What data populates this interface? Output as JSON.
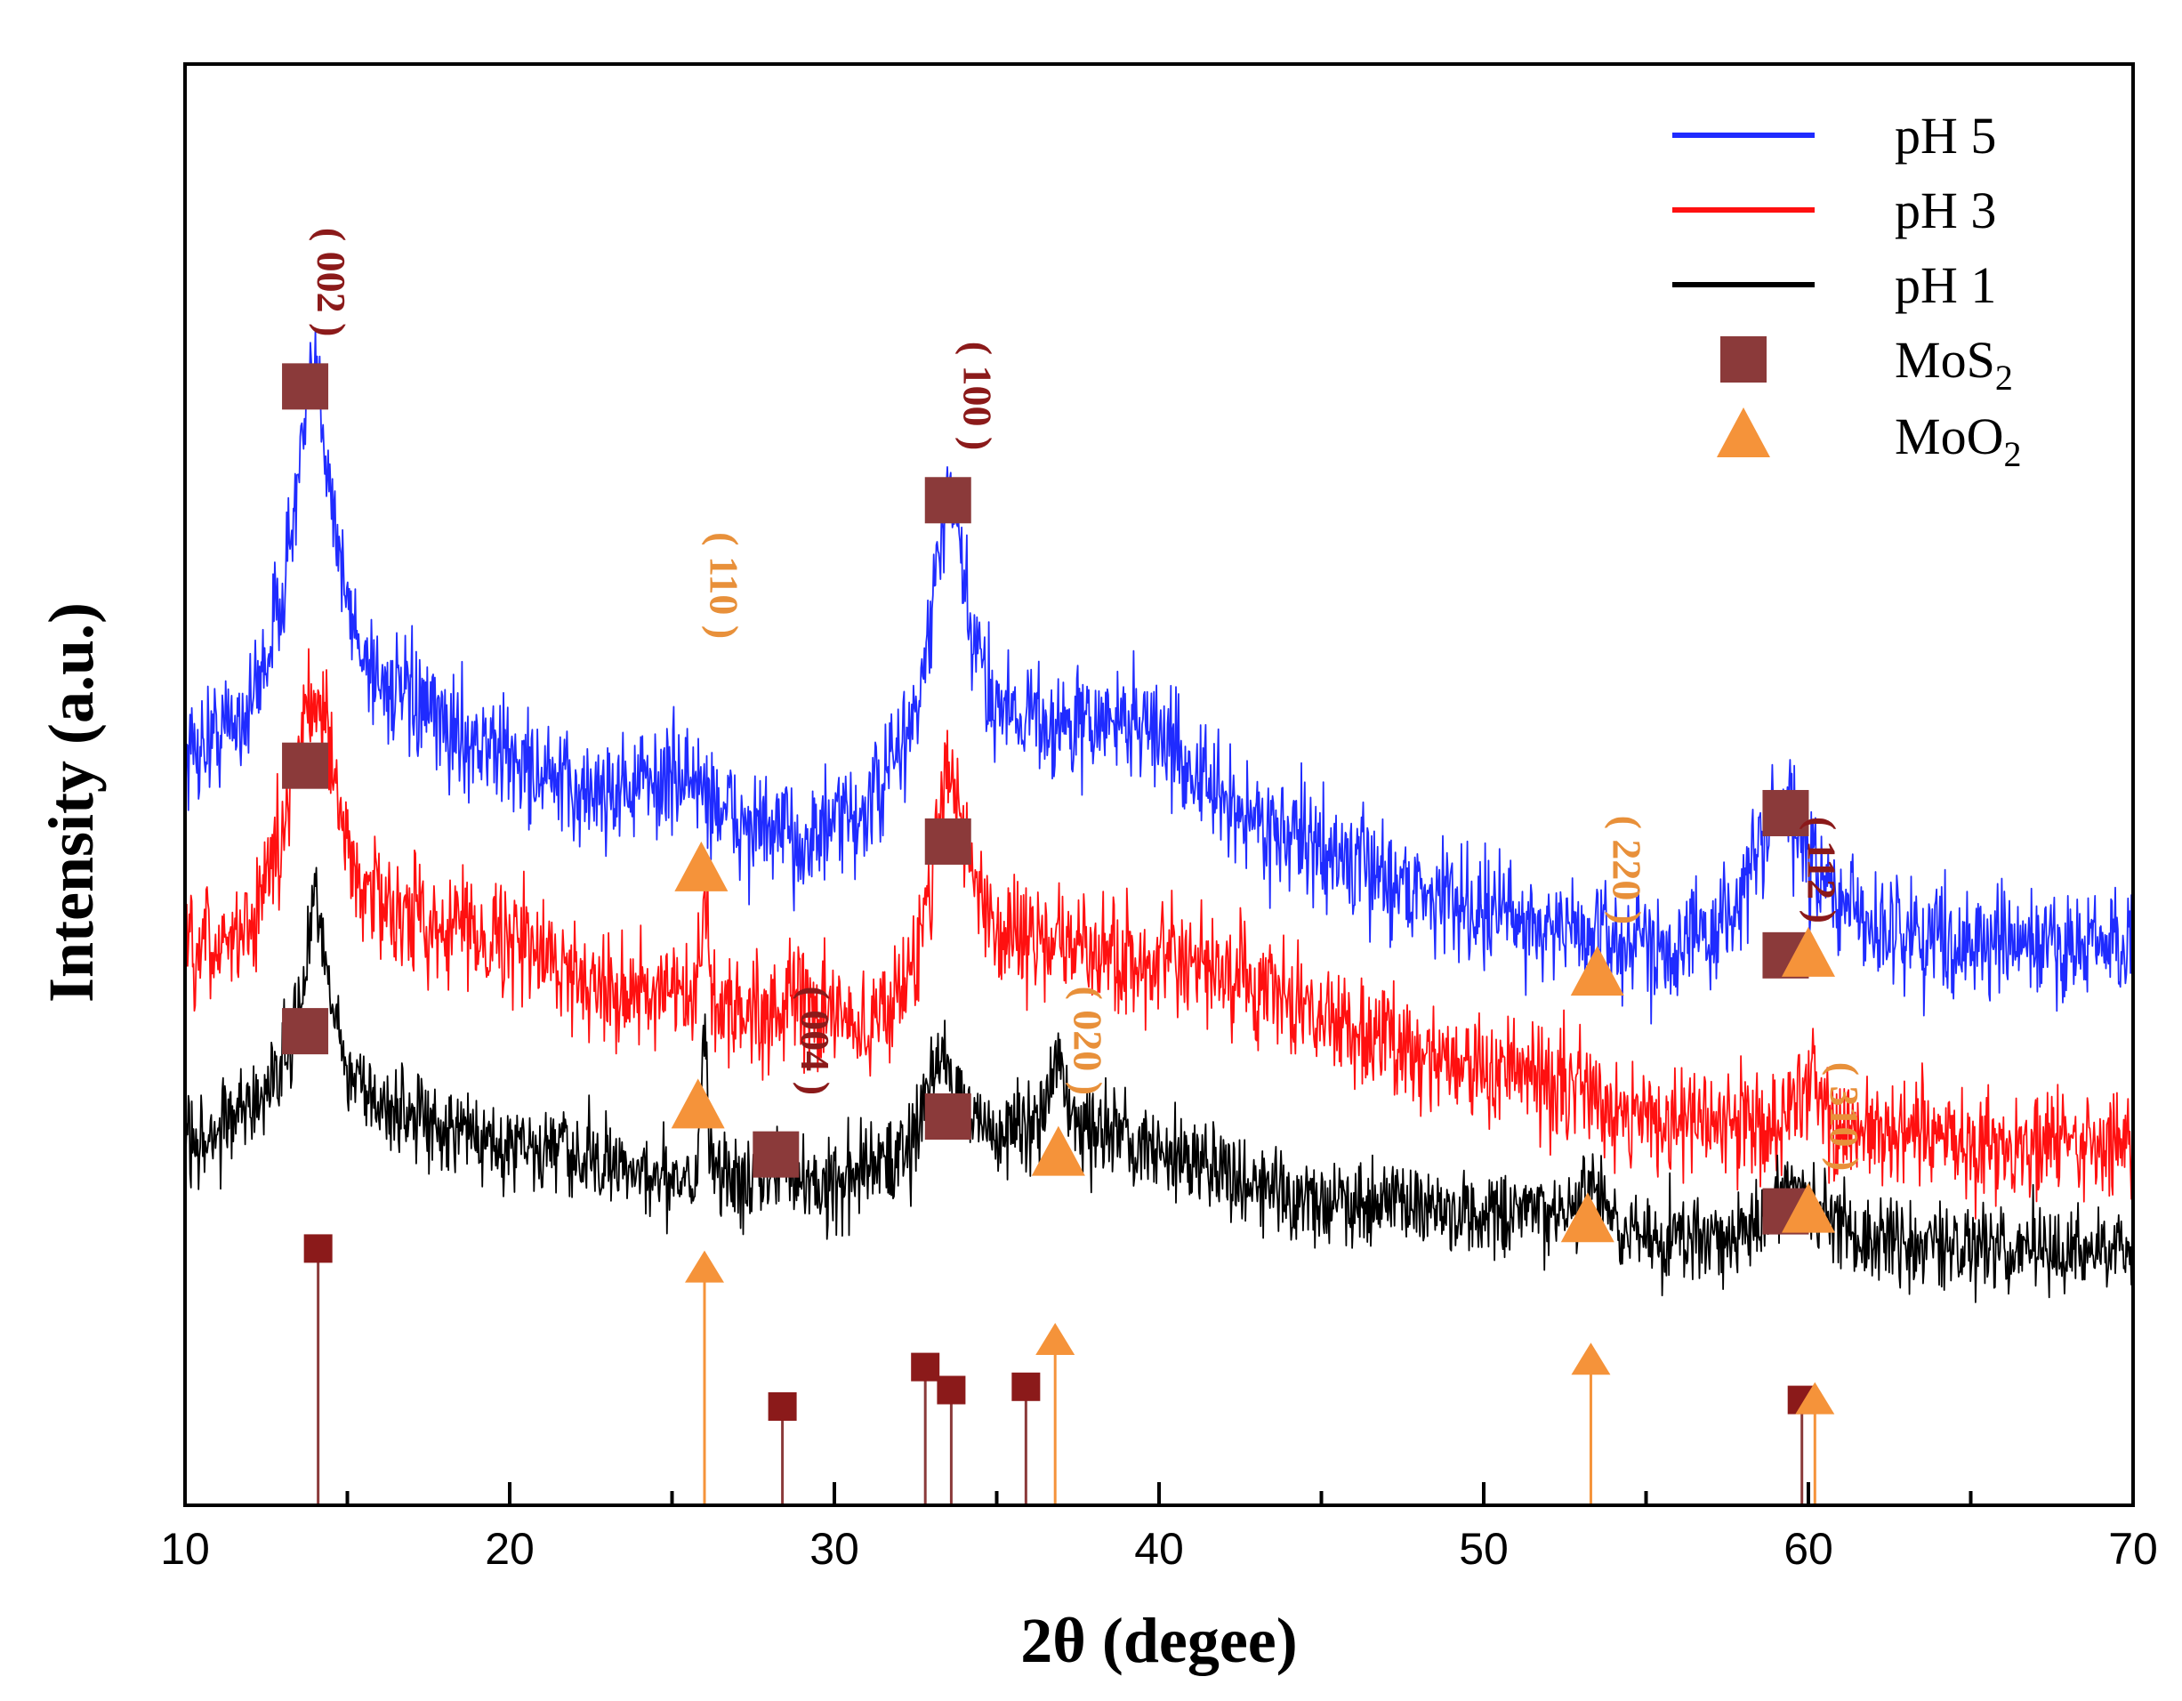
{
  "chart_data": {
    "type": "line",
    "title": "",
    "xlabel": "2θ (degee)",
    "ylabel": "Intensity (a.u.)",
    "xlim": [
      10,
      70
    ],
    "xticks": [
      10,
      20,
      30,
      40,
      50,
      60,
      70
    ],
    "grid": false,
    "legend_position": "top-right",
    "colors": {
      "pH5": "#1f2bff",
      "pH3": "#ff1010",
      "pH1": "#000000",
      "MoS2": "#8b3a3a",
      "MoO2": "#f5933a",
      "MoS2_label": "#8b1a1a",
      "MoO2_label": "#e8903a"
    },
    "legend": {
      "items": [
        {
          "label": "pH 5",
          "kind": "line",
          "color": "#1f2bff"
        },
        {
          "label": "pH 3",
          "kind": "line",
          "color": "#ff1010"
        },
        {
          "label": "pH 1",
          "kind": "line",
          "color": "#000000"
        },
        {
          "label": "MoS",
          "sub": "2",
          "kind": "square",
          "color": "#8b3a3a"
        },
        {
          "label": "MoO",
          "sub": "2",
          "kind": "triangle",
          "color": "#f5933a"
        }
      ]
    },
    "series": [
      {
        "name": "pH 5",
        "color": "#1f2bff",
        "offset": 6.7,
        "noise": 0.5,
        "profile": [
          [
            10,
            0
          ],
          [
            12,
            0.5
          ],
          [
            13,
            1.6
          ],
          [
            14,
            2.6
          ],
          [
            15,
            1.4
          ],
          [
            16,
            0.8
          ],
          [
            18,
            0.3
          ],
          [
            20,
            0.0
          ],
          [
            22,
            -0.4
          ],
          [
            24,
            -0.3
          ],
          [
            25.5,
            -0.2
          ],
          [
            27,
            -0.7
          ],
          [
            29,
            -0.9
          ],
          [
            31,
            -0.6
          ],
          [
            32.5,
            0.4
          ],
          [
            33.5,
            1.5
          ],
          [
            35,
            0.6
          ],
          [
            37,
            0.3
          ],
          [
            39.5,
            0.4
          ],
          [
            42,
            -0.5
          ],
          [
            45,
            -1.0
          ],
          [
            48,
            -1.4
          ],
          [
            52,
            -1.8
          ],
          [
            55,
            -2.0
          ],
          [
            57,
            -1.9
          ],
          [
            59,
            -1.0
          ],
          [
            60,
            -1.3
          ],
          [
            62,
            -1.8
          ],
          [
            66,
            -2.0
          ],
          [
            70,
            -2.0
          ]
        ],
        "peaks": [
          [
            14,
            1.4,
            0.5
          ],
          [
            33.5,
            1.2,
            0.4
          ],
          [
            59.2,
            0.5,
            0.6
          ]
        ]
      },
      {
        "name": "pH 3",
        "color": "#ff1010",
        "offset": 4.5,
        "noise": 0.5,
        "profile": [
          [
            10,
            0
          ],
          [
            12,
            0.4
          ],
          [
            13.5,
            1.8
          ],
          [
            14.5,
            1.6
          ],
          [
            15.5,
            0.8
          ],
          [
            17,
            0.5
          ],
          [
            20,
            0.3
          ],
          [
            22,
            -0.1
          ],
          [
            24,
            -0.3
          ],
          [
            27,
            -0.5
          ],
          [
            29,
            -0.4
          ],
          [
            31,
            -0.7
          ],
          [
            32.5,
            0.0
          ],
          [
            33.5,
            1.3
          ],
          [
            35,
            0.4
          ],
          [
            37,
            0.2
          ],
          [
            40,
            0.0
          ],
          [
            42,
            -0.1
          ],
          [
            44,
            -0.4
          ],
          [
            47,
            -0.8
          ],
          [
            50,
            -1.1
          ],
          [
            53,
            -1.3
          ],
          [
            55,
            -1.6
          ],
          [
            57,
            -1.7
          ],
          [
            60,
            -1.6
          ],
          [
            62,
            -1.8
          ],
          [
            66,
            -1.9
          ],
          [
            70,
            -1.9
          ]
        ],
        "peaks": [
          [
            14,
            1.2,
            0.4
          ],
          [
            26,
            1.1,
            0.12
          ],
          [
            33.5,
            0.8,
            0.4
          ],
          [
            60,
            0.4,
            0.3
          ]
        ]
      },
      {
        "name": "pH 1",
        "color": "#000000",
        "offset": 2.6,
        "noise": 0.4,
        "profile": [
          [
            10,
            0
          ],
          [
            12,
            0.4
          ],
          [
            13.5,
            1.0
          ],
          [
            14,
            1.7
          ],
          [
            15,
            0.8
          ],
          [
            16,
            0.4
          ],
          [
            18,
            0.2
          ],
          [
            20,
            0.0
          ],
          [
            24,
            -0.3
          ],
          [
            27,
            -0.3
          ],
          [
            30,
            -0.4
          ],
          [
            32,
            -0.1
          ],
          [
            33.5,
            0.5
          ],
          [
            35,
            0.1
          ],
          [
            37,
            0.3
          ],
          [
            38,
            0.1
          ],
          [
            40,
            0.0
          ],
          [
            42,
            -0.3
          ],
          [
            45,
            -0.6
          ],
          [
            48,
            -0.6
          ],
          [
            50,
            -0.8
          ],
          [
            53,
            -0.7
          ],
          [
            55,
            -1.0
          ],
          [
            58,
            -0.9
          ],
          [
            60,
            -0.7
          ],
          [
            62,
            -1.0
          ],
          [
            66,
            -1.1
          ],
          [
            70,
            -1.1
          ]
        ],
        "peaks": [
          [
            14,
            0.8,
            0.4
          ],
          [
            26,
            1.6,
            0.1
          ],
          [
            28.5,
            0.2,
            0.2
          ],
          [
            33.2,
            0.6,
            0.3
          ],
          [
            36.9,
            0.6,
            0.2
          ],
          [
            53.3,
            0.3,
            0.3
          ],
          [
            59.5,
            0.3,
            0.4
          ]
        ]
      }
    ],
    "series_markers": [
      {
        "series": "pH 5",
        "type": "MoS2",
        "x": 13.7,
        "y": 10.6
      },
      {
        "series": "pH 5",
        "type": "MoS2",
        "x": 33.5,
        "y": 9.4
      },
      {
        "series": "pH 5",
        "type": "MoS2",
        "x": 59.3,
        "y": 6.1
      },
      {
        "series": "pH 3",
        "type": "MoS2",
        "x": 13.7,
        "y": 6.6
      },
      {
        "series": "pH 3",
        "type": "MoO2",
        "x": 25.9,
        "y": 5.5
      },
      {
        "series": "pH 3",
        "type": "MoS2",
        "x": 33.5,
        "y": 5.8
      },
      {
        "series": "pH 3",
        "type": "MoO2",
        "x": 53.5,
        "y": 4.4
      },
      {
        "series": "pH 3",
        "type": "MoS2",
        "x": 59.3,
        "y": 4.6
      },
      {
        "series": "pH 3",
        "type": "MoO2",
        "x": 60.0,
        "y": 4.6
      },
      {
        "series": "pH 1",
        "type": "MoS2",
        "x": 13.7,
        "y": 3.8
      },
      {
        "series": "pH 1",
        "type": "MoO2",
        "x": 25.8,
        "y": 3.0
      },
      {
        "series": "pH 1",
        "type": "MoS2",
        "x": 28.2,
        "y": 2.5
      },
      {
        "series": "pH 1",
        "type": "MoS2",
        "x": 33.5,
        "y": 2.9
      },
      {
        "series": "pH 1",
        "type": "MoO2",
        "x": 36.9,
        "y": 2.5
      },
      {
        "series": "pH 1",
        "type": "MoO2",
        "x": 53.2,
        "y": 1.8
      },
      {
        "series": "pH 1",
        "type": "MoS2",
        "x": 59.3,
        "y": 1.9
      },
      {
        "series": "pH 1",
        "type": "MoO2",
        "x": 60.0,
        "y": 1.9
      }
    ],
    "reference_lines": [
      {
        "type": "MoS2",
        "x": 14.1,
        "height": 0.78
      },
      {
        "type": "MoS2",
        "x": 28.4,
        "height": 0.3
      },
      {
        "type": "MoS2",
        "x": 32.8,
        "height": 0.42
      },
      {
        "type": "MoS2",
        "x": 33.6,
        "height": 0.35
      },
      {
        "type": "MoS2",
        "x": 35.9,
        "height": 0.36
      },
      {
        "type": "MoS2",
        "x": 59.8,
        "height": 0.32
      },
      {
        "type": "MoO2",
        "x": 26.0,
        "height": 0.72
      },
      {
        "type": "MoO2",
        "x": 36.8,
        "height": 0.5
      },
      {
        "type": "MoO2",
        "x": 53.3,
        "height": 0.44
      },
      {
        "type": "MoO2",
        "x": 60.2,
        "height": 0.32
      }
    ],
    "annotations": [
      {
        "text": "( 002 )",
        "type": "MoS2",
        "x": 13.7,
        "y": 11.7
      },
      {
        "text": "( 100 )",
        "type": "MoS2",
        "x": 33.6,
        "y": 10.5
      },
      {
        "text": "( 004 )",
        "type": "MoS2",
        "x": 28.6,
        "y": 3.7
      },
      {
        "text": "( 112 )",
        "type": "MoS2",
        "x": 59.6,
        "y": 5.5
      },
      {
        "text": "( 110 )",
        "type": "MoO2",
        "x": 25.8,
        "y": 8.5
      },
      {
        "text": "( 020 )",
        "type": "MoO2",
        "x": 37.0,
        "y": 3.7
      },
      {
        "text": "( 220 )",
        "type": "MoO2",
        "x": 53.6,
        "y": 5.5
      },
      {
        "text": "( 310 )",
        "type": "MoO2",
        "x": 60.3,
        "y": 2.9
      }
    ]
  }
}
